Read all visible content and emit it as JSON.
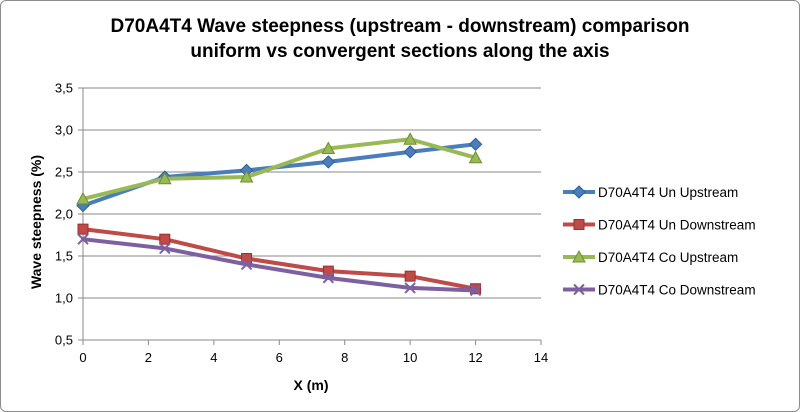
{
  "chart_data": {
    "type": "line",
    "title_lines": [
      "D70A4T4 Wave steepness (upstream - downstream) comparison",
      "uniform vs convergent sections along the axis"
    ],
    "xlabel": "X (m)",
    "ylabel": "Wave steepness (%)",
    "xlim": [
      0,
      14
    ],
    "ylim": [
      0.5,
      3.5
    ],
    "x_ticks": [
      0,
      2,
      4,
      6,
      8,
      10,
      12,
      14
    ],
    "x_tick_labels": [
      "0",
      "2",
      "4",
      "6",
      "8",
      "10",
      "12",
      "14"
    ],
    "y_ticks": [
      0.5,
      1.0,
      1.5,
      2.0,
      2.5,
      3.0,
      3.5
    ],
    "y_tick_labels": [
      "0,5",
      "1,0",
      "1,5",
      "2,0",
      "2,5",
      "3,0",
      "3,5"
    ],
    "grid": "horizontal",
    "legend_position": "right",
    "x": [
      0,
      2.5,
      5,
      7.5,
      10,
      12
    ],
    "series": [
      {
        "name": "D70A4T4 Un Upstream",
        "values": [
          2.1,
          2.44,
          2.52,
          2.62,
          2.74,
          2.83
        ],
        "color": "#4a7ebb",
        "marker": "diamond"
      },
      {
        "name": "D70A4T4 Un Downstream",
        "values": [
          1.82,
          1.7,
          1.47,
          1.32,
          1.26,
          1.11
        ],
        "color": "#be4b48",
        "marker": "square"
      },
      {
        "name": "D70A4T4 Co Upstream",
        "values": [
          2.18,
          2.42,
          2.44,
          2.78,
          2.89,
          2.67
        ],
        "color": "#98b954",
        "marker": "triangle"
      },
      {
        "name": "D70A4T4 Co Downstream",
        "values": [
          1.7,
          1.59,
          1.4,
          1.24,
          1.12,
          1.09
        ],
        "color": "#7d60a0",
        "marker": "x"
      }
    ]
  }
}
